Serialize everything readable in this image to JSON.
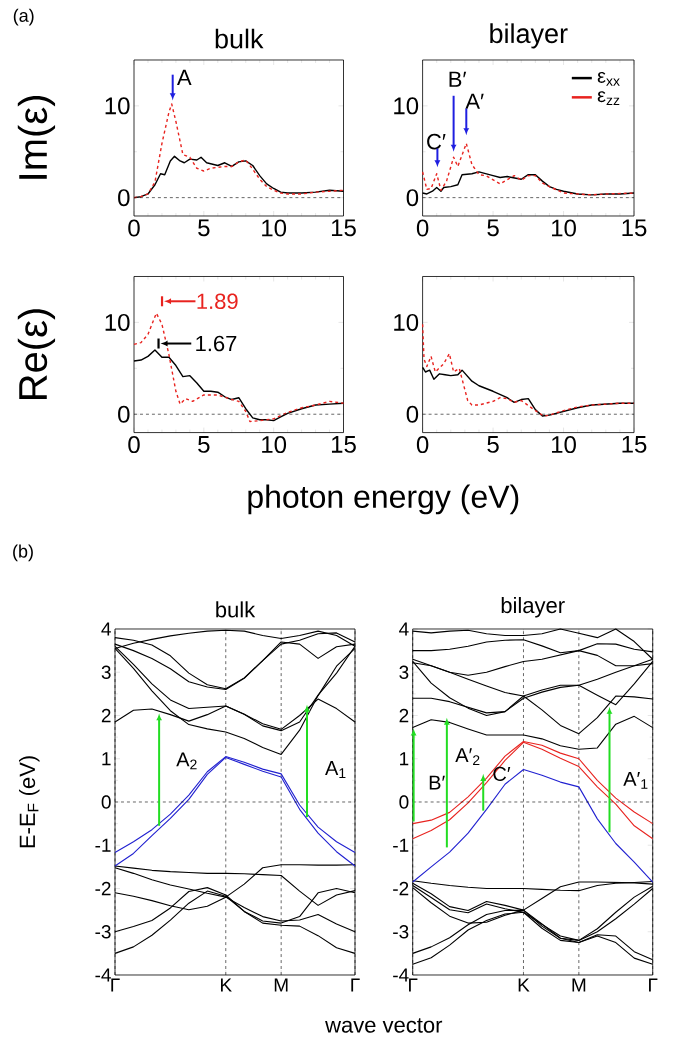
{
  "chart_data": [
    {
      "type": "line",
      "title": "bulk",
      "ylabel": "Im(ε)",
      "xlim": [
        0,
        15
      ],
      "ylim": [
        -2,
        15
      ],
      "xticks": [
        0,
        5,
        10,
        15
      ],
      "yticks": [
        0,
        10
      ],
      "ref_lines": [
        {
          "axis": "y",
          "value": 0,
          "line_style": "dashed"
        }
      ],
      "annotations": [
        "(a)",
        "A"
      ],
      "series": [
        {
          "color": "#000000",
          "x": [
            0,
            0.5,
            1,
            1.5,
            1.9,
            2.2,
            2.6,
            2.9,
            3.3,
            3.6,
            4,
            4.5,
            4.8,
            5.2,
            6,
            6.5,
            7,
            7.5,
            8,
            8.5,
            9,
            9.5,
            10,
            10.5,
            11,
            12,
            13,
            14,
            15
          ],
          "values": [
            0,
            0.1,
            0.4,
            1.4,
            2.6,
            2.5,
            4.0,
            4.5,
            4.0,
            3.8,
            4.2,
            4.1,
            4.4,
            3.8,
            3.5,
            3.8,
            3.4,
            3.9,
            4.0,
            3.5,
            2.4,
            1.5,
            1.0,
            0.6,
            0.5,
            0.5,
            0.6,
            0.8,
            0.7
          ]
        },
        {
          "color": "#e8231f",
          "line_style": "dashed",
          "x": [
            0,
            0.5,
            1,
            1.5,
            2,
            2.5,
            2.7,
            3,
            3.5,
            4,
            4.5,
            5,
            5.5,
            6,
            6.5,
            7,
            7.5,
            8,
            8.5,
            9,
            9.5,
            10,
            10.5,
            11,
            12,
            13,
            14,
            15
          ],
          "values": [
            0,
            0.1,
            0.4,
            1.7,
            5.9,
            9.3,
            10.2,
            8.3,
            4.7,
            4.4,
            3.2,
            2.9,
            3.2,
            3.3,
            3.4,
            3.4,
            3.9,
            4.1,
            3.1,
            2.0,
            1.2,
            0.8,
            0.5,
            0.4,
            0.4,
            0.6,
            0.7,
            0.8
          ]
        }
      ]
    },
    {
      "type": "line",
      "title": "bilayer",
      "xlim": [
        0,
        15
      ],
      "ylim": [
        -2,
        15
      ],
      "xticks": [
        0,
        5,
        10,
        15
      ],
      "yticks": [
        0,
        10
      ],
      "legend": "top right",
      "ref_lines": [
        {
          "axis": "y",
          "value": 0,
          "line_style": "dashed"
        }
      ],
      "annotations": [
        "C′",
        "B′",
        "A′"
      ],
      "series": [
        {
          "name": "ε$_{xx}$",
          "color": "#000000",
          "x": [
            0,
            0.3,
            0.7,
            1.0,
            1.3,
            1.5,
            2,
            2.5,
            2.8,
            3.5,
            4,
            5,
            5.5,
            6,
            7,
            7.5,
            8,
            8.5,
            9,
            9.5,
            10,
            11,
            12,
            13,
            14,
            15
          ],
          "values": [
            0.5,
            0.4,
            0.7,
            1.1,
            0.7,
            1.1,
            1.2,
            1.4,
            2.5,
            2.6,
            2.8,
            2.4,
            2.2,
            2.3,
            2.0,
            2.5,
            2.5,
            1.8,
            1.2,
            0.9,
            0.7,
            0.4,
            0.3,
            0.4,
            0.4,
            0.5
          ]
        },
        {
          "name": "ε$_{zz}$",
          "color": "#e8231f",
          "line_style": "dashed",
          "x": [
            0,
            0.3,
            0.6,
            1.0,
            1.3,
            1.7,
            2.2,
            2.5,
            3.1,
            3.5,
            4,
            4.5,
            5.5,
            6.5,
            7,
            7.5,
            8,
            8.5,
            9,
            10,
            11,
            12,
            13,
            15
          ],
          "values": [
            2.8,
            0.9,
            1.0,
            2.6,
            0.8,
            1.8,
            4.4,
            3.4,
            5.9,
            3.6,
            2.5,
            2.4,
            1.5,
            2.4,
            1.9,
            2.4,
            2.4,
            1.6,
            1.2,
            0.5,
            0.4,
            0.3,
            0.4,
            0.5
          ]
        }
      ]
    },
    {
      "type": "line",
      "ylabel": "Re(ε)",
      "xlabel": "photon energy (eV)",
      "xlim": [
        0,
        15
      ],
      "ylim": [
        -2,
        15
      ],
      "xticks": [
        0,
        5,
        10,
        15
      ],
      "yticks": [
        0,
        10
      ],
      "ref_lines": [
        {
          "axis": "y",
          "value": 0,
          "line_style": "dashed"
        }
      ],
      "annotations": [
        "1.89",
        "1.67"
      ],
      "series": [
        {
          "color": "#000000",
          "x": [
            0,
            0.5,
            1,
            1.5,
            2,
            2.5,
            3,
            3.5,
            4,
            4.5,
            5,
            5.5,
            6,
            6.5,
            7,
            7.5,
            8,
            8.5,
            9,
            9.5,
            10,
            10.5,
            11,
            12,
            13,
            14,
            15
          ],
          "values": [
            5.8,
            5.9,
            6.3,
            7.0,
            6.2,
            6.2,
            5.3,
            4.1,
            4.2,
            3.4,
            2.5,
            2.5,
            2.4,
            1.9,
            1.6,
            1.8,
            0.6,
            -0.4,
            -0.6,
            -0.6,
            -0.7,
            -0.3,
            0.1,
            0.6,
            1.0,
            1.1,
            1.2
          ]
        },
        {
          "color": "#e8231f",
          "line_style": "dashed",
          "x": [
            0,
            0.5,
            1,
            1.6,
            2,
            2.5,
            3,
            3.3,
            3.7,
            4.2,
            5,
            6,
            7,
            7.5,
            8,
            8.3,
            9,
            10,
            11,
            12,
            13,
            14,
            15
          ],
          "values": [
            7.6,
            7.8,
            8.7,
            11.0,
            9.8,
            6.5,
            2.5,
            1.1,
            1.7,
            1.4,
            2.1,
            2.1,
            1.6,
            1.4,
            0.3,
            -0.8,
            -0.7,
            -0.5,
            0.2,
            0.7,
            1.0,
            1.4,
            1.2
          ]
        }
      ]
    },
    {
      "type": "line",
      "xlim": [
        0,
        15
      ],
      "ylim": [
        -2,
        15
      ],
      "xticks": [
        0,
        5,
        10,
        15
      ],
      "yticks": [
        0,
        10
      ],
      "ref_lines": [
        {
          "axis": "y",
          "value": 0,
          "line_style": "dashed"
        }
      ],
      "series": [
        {
          "color": "#000000",
          "x": [
            0,
            0.2,
            0.5,
            0.8,
            1.2,
            1.6,
            2,
            2.5,
            2.8,
            3.5,
            4,
            5,
            6,
            6.5,
            7,
            7.5,
            8,
            8.5,
            9,
            10,
            11,
            12,
            13,
            14,
            15
          ],
          "values": [
            5.1,
            4.6,
            4.8,
            3.8,
            4.4,
            4.3,
            4.2,
            4.3,
            4.8,
            3.6,
            3.1,
            2.5,
            1.8,
            1.3,
            1.6,
            1.7,
            0.5,
            -0.2,
            -0.1,
            0.3,
            0.7,
            1.0,
            1.1,
            1.2,
            1.2
          ]
        },
        {
          "color": "#e8231f",
          "line_style": "dashed",
          "x": [
            0,
            0.1,
            0.3,
            0.6,
            0.9,
            1.5,
            1.9,
            2.2,
            2.6,
            3.2,
            3.5,
            4,
            5,
            5.5,
            6,
            6.5,
            7,
            8,
            8.6,
            9,
            10,
            11,
            12,
            13,
            14,
            15
          ],
          "values": [
            9.8,
            6,
            5.2,
            6.3,
            4.6,
            5.5,
            6.6,
            4.6,
            5.0,
            1.5,
            1.0,
            1.0,
            1.4,
            1.8,
            1.7,
            1.3,
            1.5,
            0.4,
            -0.2,
            -0.1,
            0.4,
            0.8,
            1.0,
            1.1,
            1.2,
            1.2
          ]
        }
      ]
    },
    {
      "type": "line",
      "title": "bulk",
      "ylabel": "E-E$_{F}$ (eV)",
      "xlabel": "wave vector",
      "ylim": [
        -4,
        4
      ],
      "grid": "x",
      "categories": [
        "Γ",
        null,
        null,
        null,
        null,
        null,
        "K",
        null,
        null,
        "M",
        null,
        null,
        null,
        "Γ"
      ],
      "yticks": [
        -4,
        -3,
        -2,
        -1,
        0,
        1,
        2,
        3,
        4
      ],
      "ref_lines": [
        {
          "axis": "y",
          "value": 0,
          "line_style": "dashed"
        }
      ],
      "annotations": [
        "(b)",
        "A$_{2}$",
        "A$_{1}$"
      ],
      "series": [
        {
          "color": "#000000",
          "values": [
            1.85,
            2.12,
            2.15,
            2.02,
            1.87,
            2.02,
            2.22,
            2.03,
            1.81,
            1.68,
            2.0,
            2.38,
            2.16,
            1.85
          ]
        },
        {
          "color": "#000000",
          "values": [
            3.55,
            3.09,
            2.57,
            2.11,
            1.79,
            1.69,
            1.62,
            1.47,
            1.26,
            1.1,
            1.66,
            2.46,
            3.14,
            3.55
          ]
        },
        {
          "color": "#000000",
          "values": [
            3.6,
            3.18,
            2.73,
            2.36,
            2.16,
            2.19,
            2.22,
            2.03,
            1.76,
            1.65,
            1.85,
            2.47,
            2.98,
            3.6
          ]
        },
        {
          "color": "#000000",
          "values": [
            3.65,
            3.5,
            3.32,
            3.08,
            2.78,
            2.66,
            2.6,
            2.86,
            3.27,
            3.7,
            3.65,
            3.32,
            3.59,
            3.65
          ]
        },
        {
          "color": "#000000",
          "values": [
            3.8,
            3.74,
            3.63,
            3.38,
            2.98,
            2.71,
            2.62,
            2.87,
            3.27,
            3.65,
            3.74,
            3.89,
            3.91,
            3.7
          ]
        },
        {
          "color": "#000000",
          "values": [
            3.55,
            3.67,
            3.76,
            3.84,
            3.9,
            3.95,
            3.97,
            3.95,
            3.85,
            3.78,
            3.85,
            3.95,
            3.85,
            3.6
          ]
        },
        {
          "color": "#000000",
          "values": [
            -1.48,
            -1.53,
            -1.58,
            -1.61,
            -1.63,
            -1.65,
            -1.65,
            -1.66,
            -1.68,
            -1.7,
            -2.06,
            -2.39,
            -2.15,
            -2.05
          ]
        },
        {
          "color": "#000000",
          "values": [
            -1.52,
            -1.65,
            -1.8,
            -1.92,
            -2.01,
            -2.11,
            -2.2,
            -1.9,
            -1.52,
            -1.45,
            -1.45,
            -1.46,
            -1.46,
            -1.45
          ]
        },
        {
          "color": "#000000",
          "values": [
            -2.1,
            -2.18,
            -2.28,
            -2.4,
            -2.49,
            -2.41,
            -2.2,
            -2.44,
            -2.65,
            -2.75,
            -2.73,
            -2.6,
            -2.82,
            -3.0
          ]
        },
        {
          "color": "#000000",
          "values": [
            -3.0,
            -2.88,
            -2.74,
            -2.45,
            -2.07,
            -1.98,
            -2.15,
            -2.53,
            -2.75,
            -2.8,
            -2.65,
            -2.1,
            -2.0,
            -2.1
          ]
        },
        {
          "color": "#000000",
          "values": [
            -3.5,
            -3.35,
            -3.08,
            -2.73,
            -2.34,
            -2.06,
            -2.18,
            -2.53,
            -2.8,
            -2.85,
            -2.87,
            -3.09,
            -3.37,
            -3.5
          ]
        },
        {
          "color": "#2020d0",
          "values": [
            -1.17,
            -0.92,
            -0.64,
            -0.28,
            0.16,
            0.7,
            1.05,
            0.92,
            0.76,
            0.65,
            -0.07,
            -0.58,
            -0.92,
            -1.17
          ]
        },
        {
          "color": "#2020d0",
          "values": [
            -1.48,
            -1.19,
            -0.78,
            -0.38,
            0.06,
            0.64,
            1.03,
            0.87,
            0.71,
            0.58,
            -0.17,
            -0.72,
            -1.15,
            -1.48
          ]
        }
      ]
    },
    {
      "type": "line",
      "title": "bilayer",
      "ylim": [
        -4,
        4
      ],
      "grid": "x",
      "categories": [
        "Γ",
        null,
        null,
        null,
        null,
        null,
        "K",
        null,
        null,
        "M",
        null,
        null,
        null,
        "Γ"
      ],
      "yticks": [
        -4,
        -3,
        -2,
        -1,
        0,
        1,
        2,
        3,
        4
      ],
      "ref_lines": [
        {
          "axis": "y",
          "value": 0,
          "line_style": "dashed"
        }
      ],
      "annotations": [
        "B′",
        "A′$_{2}$",
        "C′",
        "A′$_{1}$"
      ],
      "series": [
        {
          "color": "#000000",
          "values": [
            1.72,
            1.9,
            1.84,
            1.69,
            1.55,
            1.55,
            1.55,
            1.46,
            1.3,
            1.22,
            1.25,
            1.8,
            1.98,
            1.72
          ]
        },
        {
          "color": "#000000",
          "values": [
            2.4,
            2.4,
            2.32,
            2.19,
            2.06,
            2.09,
            2.45,
            2.13,
            1.77,
            1.58,
            1.95,
            2.45,
            2.43,
            2.38
          ]
        },
        {
          "color": "#000000",
          "values": [
            3.25,
            2.75,
            2.41,
            2.17,
            2.0,
            2.09,
            2.4,
            2.54,
            2.65,
            2.7,
            2.47,
            2.25,
            2.73,
            3.25
          ]
        },
        {
          "color": "#000000",
          "values": [
            3.22,
            3.15,
            3.0,
            2.84,
            2.68,
            2.53,
            2.45,
            2.59,
            2.7,
            2.7,
            2.84,
            3.0,
            3.15,
            3.2
          ]
        },
        {
          "color": "#000000",
          "values": [
            3.3,
            3.15,
            3.0,
            2.93,
            3.0,
            3.13,
            3.25,
            3.3,
            3.4,
            3.5,
            3.39,
            3.15,
            3.15,
            3.3
          ]
        },
        {
          "color": "#000000",
          "values": [
            3.5,
            3.5,
            3.53,
            3.6,
            3.7,
            3.74,
            3.75,
            3.61,
            3.45,
            3.5,
            3.66,
            3.65,
            3.53,
            3.47
          ]
        },
        {
          "color": "#000000",
          "values": [
            3.95,
            3.91,
            3.95,
            3.97,
            3.89,
            3.85,
            3.85,
            3.89,
            4.0,
            3.9,
            3.8,
            4.0,
            3.71,
            3.3
          ]
        },
        {
          "color": "#000000",
          "values": [
            -1.82,
            -1.88,
            -1.93,
            -1.97,
            -2.0,
            -2.0,
            -2.0,
            -2.02,
            -2.04,
            -2.05,
            -1.93,
            -1.88,
            -1.86,
            -1.84
          ]
        },
        {
          "color": "#000000",
          "values": [
            -1.88,
            -2.12,
            -2.42,
            -2.51,
            -2.3,
            -2.39,
            -2.5,
            -2.23,
            -1.96,
            -1.85,
            -1.85,
            -1.86,
            -1.87,
            -1.9
          ]
        },
        {
          "color": "#000000",
          "values": [
            -1.93,
            -2.21,
            -2.49,
            -2.56,
            -2.36,
            -2.47,
            -2.55,
            -2.83,
            -3.1,
            -3.2,
            -2.93,
            -2.55,
            -2.2,
            -1.95
          ]
        },
        {
          "color": "#000000",
          "values": [
            -1.98,
            -2.33,
            -2.64,
            -2.8,
            -2.78,
            -2.62,
            -2.5,
            -2.82,
            -3.15,
            -3.2,
            -3.0,
            -2.7,
            -2.36,
            -2.0
          ]
        },
        {
          "color": "#000000",
          "values": [
            -3.5,
            -3.35,
            -3.14,
            -2.84,
            -2.6,
            -2.51,
            -2.5,
            -2.87,
            -3.15,
            -3.25,
            -3.07,
            -3.1,
            -3.46,
            -3.65
          ]
        },
        {
          "color": "#000000",
          "values": [
            -3.75,
            -3.6,
            -3.31,
            -2.96,
            -2.74,
            -2.59,
            -2.55,
            -2.92,
            -3.2,
            -3.25,
            -3.1,
            -3.25,
            -3.61,
            -3.75
          ]
        },
        {
          "color": "#2020d0",
          "values": [
            -1.85,
            -1.5,
            -1.16,
            -0.72,
            -0.17,
            0.41,
            0.75,
            0.62,
            0.46,
            0.35,
            -0.39,
            -0.96,
            -1.39,
            -1.85
          ]
        },
        {
          "color": "#e8231f",
          "values": [
            -0.5,
            -0.42,
            -0.24,
            0.12,
            0.55,
            1.06,
            1.4,
            1.31,
            1.13,
            1.0,
            0.5,
            0.09,
            -0.23,
            -0.5
          ]
        },
        {
          "color": "#e8231f",
          "values": [
            -0.85,
            -0.66,
            -0.41,
            -0.02,
            0.45,
            0.96,
            1.38,
            1.22,
            1.01,
            0.82,
            0.35,
            -0.05,
            -0.55,
            -0.85
          ]
        }
      ]
    }
  ]
}
